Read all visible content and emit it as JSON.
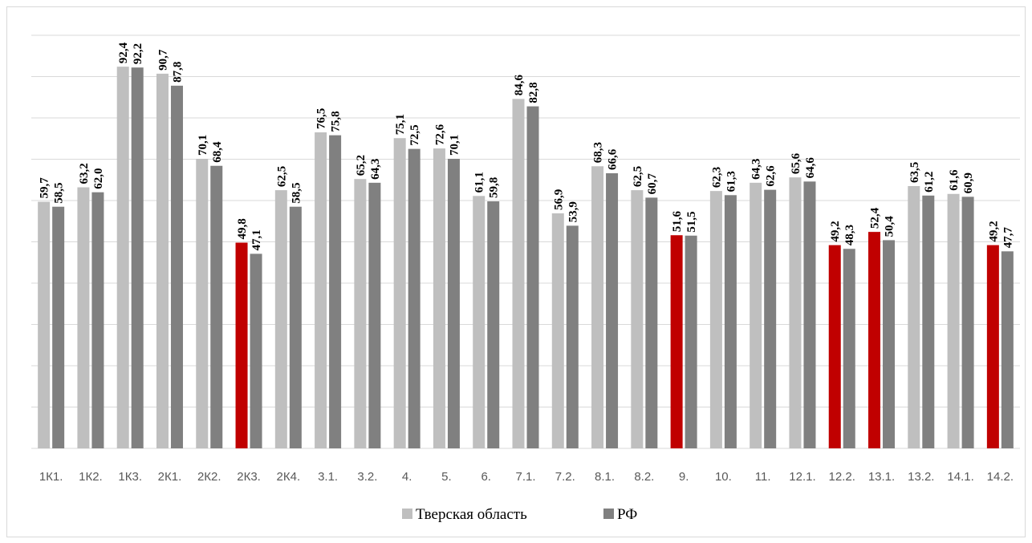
{
  "chart_data": {
    "type": "bar",
    "categories": [
      "1К1.",
      "1К2.",
      "1К3.",
      "2К1.",
      "2К2.",
      "2К3.",
      "2К4.",
      "3.1.",
      "3.2.",
      "4.",
      "5.",
      "6.",
      "7.1.",
      "7.2.",
      "8.1.",
      "8.2.",
      "9.",
      "10.",
      "11.",
      "12.1.",
      "12.2.",
      "13.1.",
      "13.2.",
      "14.1.",
      "14.2."
    ],
    "series": [
      {
        "name": "Тверская область",
        "values": [
          59.7,
          63.2,
          92.4,
          90.7,
          70.1,
          49.8,
          62.5,
          76.5,
          65.2,
          75.1,
          72.6,
          61.1,
          84.6,
          56.9,
          68.3,
          62.5,
          51.6,
          62.3,
          64.3,
          65.6,
          49.2,
          52.4,
          63.5,
          61.6,
          49.2
        ],
        "labels": [
          "59,7",
          "63,2",
          "92,4",
          "90,7",
          "70,1",
          "49,8",
          "62,5",
          "76,5",
          "65,2",
          "75,1",
          "72,6",
          "61,1",
          "84,6",
          "56,9",
          "68,3",
          "62,5",
          "51,6",
          "62,3",
          "64,3",
          "65,6",
          "49,2",
          "52,4",
          "63,5",
          "61,6",
          "49,2"
        ],
        "color": "#bfbfbf",
        "highlight_color": "#c00000",
        "highlight_indices": [
          5,
          16,
          20,
          21,
          24
        ]
      },
      {
        "name": "РФ",
        "values": [
          58.5,
          62.0,
          92.2,
          87.8,
          68.4,
          47.1,
          58.5,
          75.8,
          64.3,
          72.5,
          70.1,
          59.8,
          82.8,
          53.9,
          66.6,
          60.7,
          51.5,
          61.3,
          62.6,
          64.6,
          48.3,
          50.4,
          61.2,
          60.9,
          47.7
        ],
        "labels": [
          "58,5",
          "62,0",
          "92,2",
          "87,8",
          "68,4",
          "47,1",
          "58,5",
          "75,8",
          "64,3",
          "72,5",
          "70,1",
          "59,8",
          "82,8",
          "53,9",
          "66,6",
          "60,7",
          "51,5",
          "61,3",
          "62,6",
          "64,6",
          "48,3",
          "50,4",
          "61,2",
          "60,9",
          "47,7"
        ],
        "color": "#808080"
      }
    ],
    "ylim": [
      0,
      100
    ],
    "grid": true,
    "legend": "bottom-center",
    "gridline_color": "#d9d9d9"
  }
}
